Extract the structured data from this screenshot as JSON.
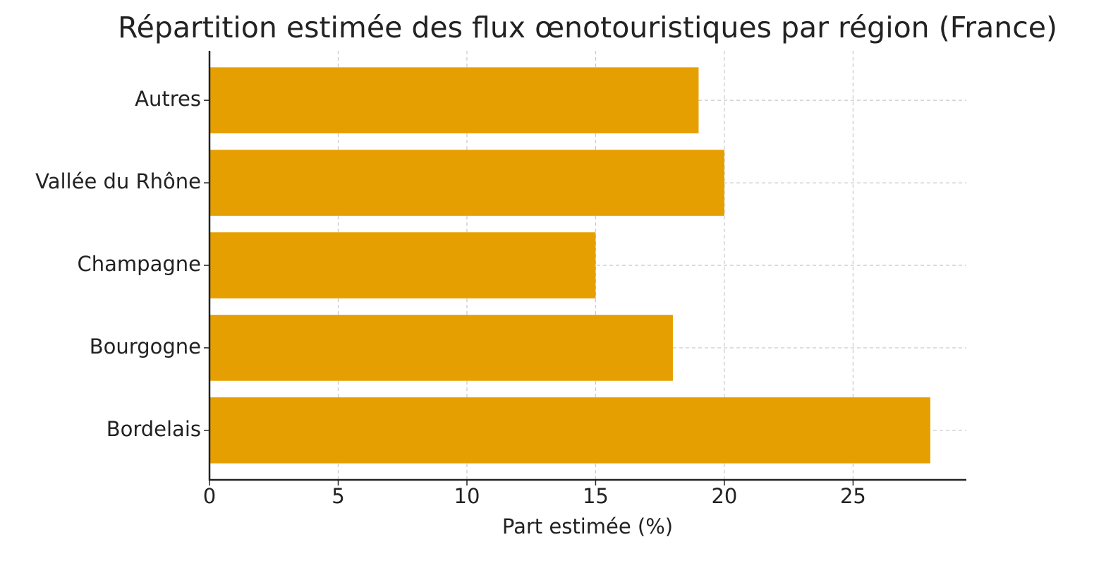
{
  "chart_data": {
    "type": "barh",
    "title": "Répartition estimée des flux œnotouristiques par région (France)",
    "x_label": "Part estimée (%)",
    "categories": [
      "Bordelais",
      "Bourgogne",
      "Champagne",
      "Vallée du Rhône",
      "Autres"
    ],
    "values": [
      28,
      18,
      15,
      20,
      19
    ],
    "color": "#e69f00",
    "xlim": [
      0,
      29.4
    ],
    "xticks": [
      0,
      5,
      10,
      15,
      20,
      25
    ],
    "grid": true
  }
}
